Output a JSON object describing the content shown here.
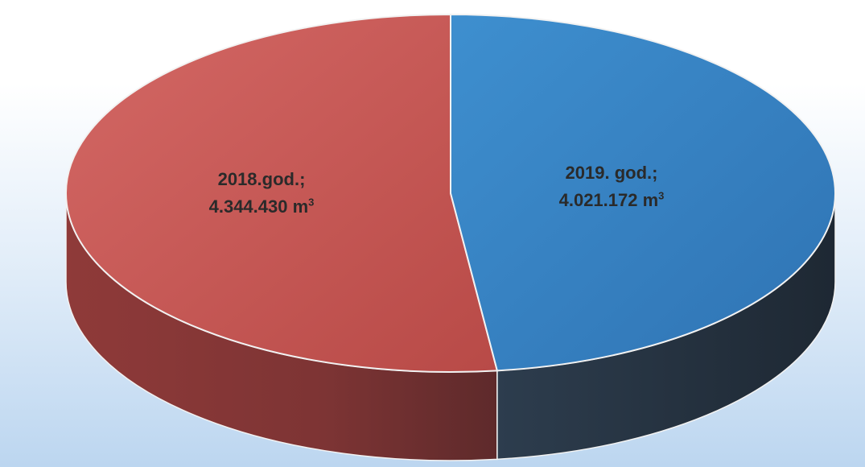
{
  "chart_data": {
    "type": "pie",
    "style": "3d",
    "slices": [
      {
        "year_label": "2018.god.;",
        "value": 4344430,
        "value_text": "4.344.430 m",
        "unit_exponent": "3",
        "color": "#c0504d"
      },
      {
        "year_label": "2019. god.;",
        "value": 4021172,
        "value_text": "4.021.172 m",
        "unit_exponent": "3",
        "color": "#4f81bd"
      }
    ],
    "legend": "none",
    "title": ""
  }
}
